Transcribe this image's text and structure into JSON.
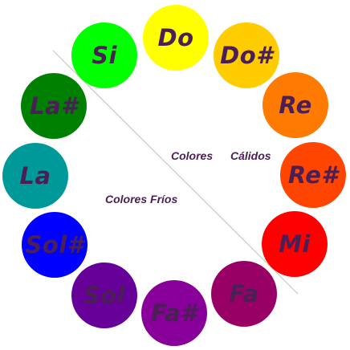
{
  "diagram": {
    "labels": {
      "colores": "Colores",
      "calidos": "Cálidos",
      "frios": "Colores Fríos"
    },
    "notes": [
      {
        "key": "do",
        "label": "Do",
        "color": "#ffff00"
      },
      {
        "key": "dos",
        "label": "Do#",
        "color": "#ffcc00"
      },
      {
        "key": "re",
        "label": "Re",
        "color": "#ff7a00"
      },
      {
        "key": "res",
        "label": "Re#",
        "color": "#ff4500"
      },
      {
        "key": "mi",
        "label": "Mi",
        "color": "#ff0000"
      },
      {
        "key": "fa",
        "label": "Fa",
        "color": "#990066"
      },
      {
        "key": "fas",
        "label": "Fa#",
        "color": "#880099"
      },
      {
        "key": "sol",
        "label": "Sol",
        "color": "#660099"
      },
      {
        "key": "sols",
        "label": "Sol#",
        "color": "#0000ff"
      },
      {
        "key": "la",
        "label": "La",
        "color": "#009999"
      },
      {
        "key": "las",
        "label": "La#",
        "color": "#008000"
      },
      {
        "key": "si",
        "label": "Si",
        "color": "#00ff00"
      }
    ]
  }
}
